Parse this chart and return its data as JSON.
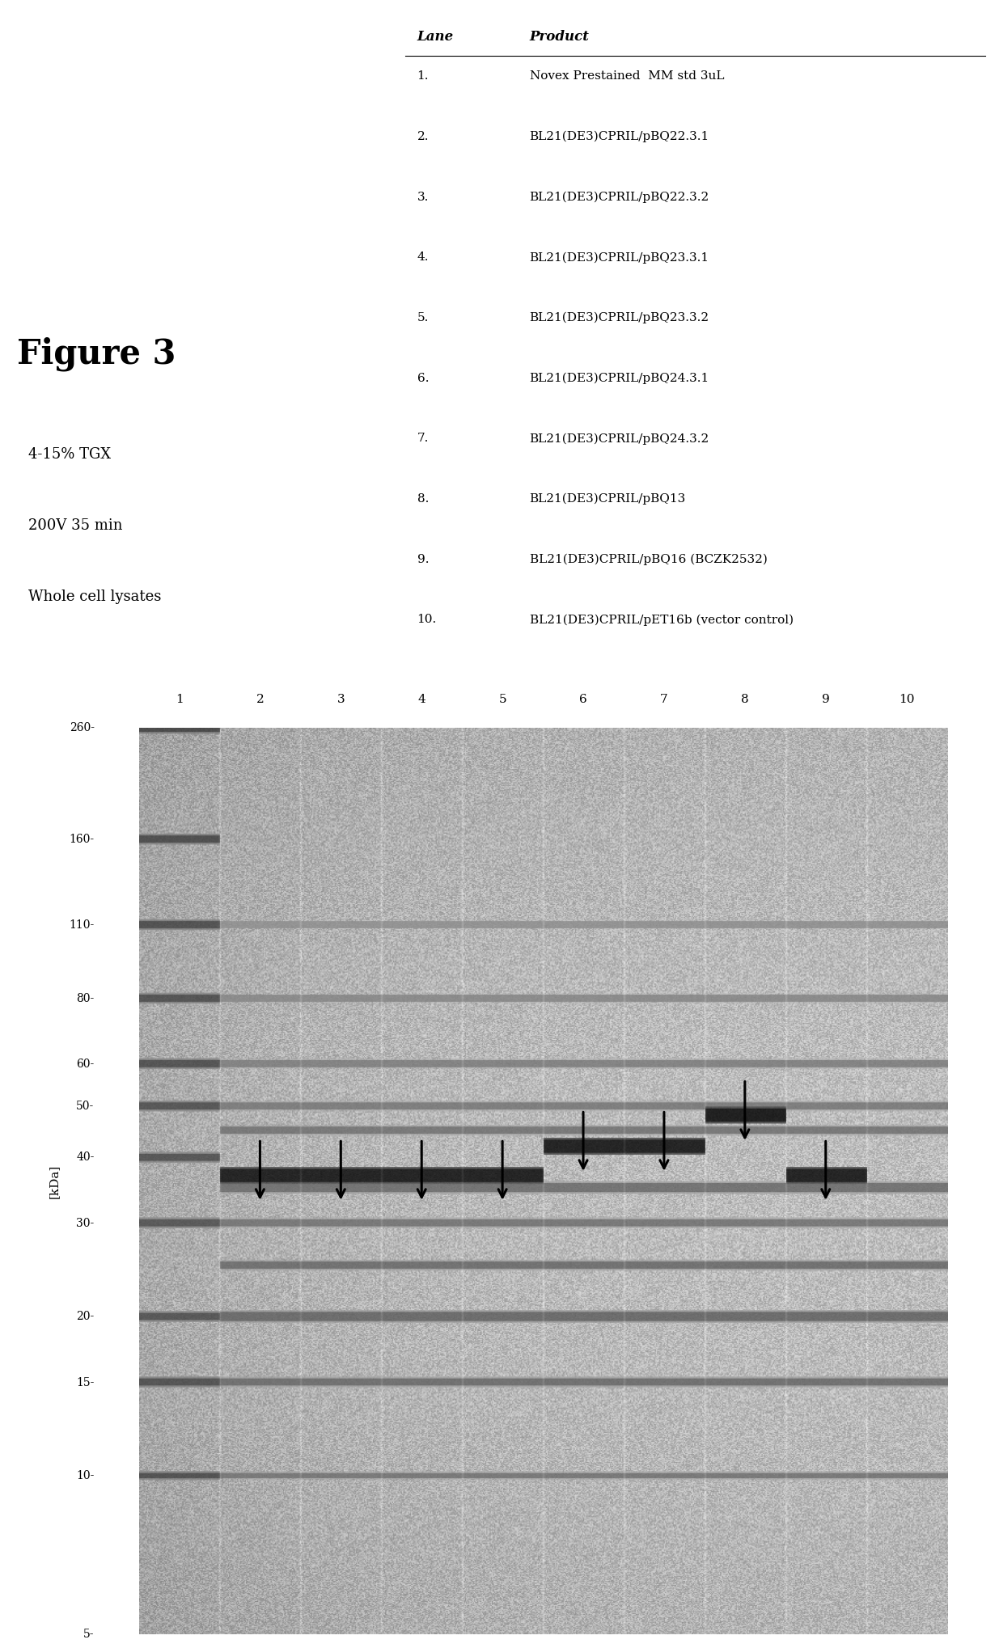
{
  "title": "Figure 3",
  "gel_conditions": [
    "4-15% TGX",
    "200V 35 min",
    "Whole cell lysates"
  ],
  "lane_labels": [
    "1",
    "2",
    "3",
    "4",
    "5",
    "6",
    "7",
    "8",
    "9",
    "10"
  ],
  "kda_values": [
    260,
    160,
    110,
    80,
    60,
    50,
    40,
    30,
    20,
    15,
    10,
    5
  ],
  "table_header": [
    "Lane",
    "Product"
  ],
  "table_rows": [
    [
      "1.",
      "Novex Prestained  MM std 3uL"
    ],
    [
      "2.",
      "BL21(DE3)CPRIL/pBQ22.3.1"
    ],
    [
      "3.",
      "BL21(DE3)CPRIL/pBQ22.3.2"
    ],
    [
      "4.",
      "BL21(DE3)CPRIL/pBQ23.3.1"
    ],
    [
      "5.",
      "BL21(DE3)CPRIL/pBQ23.3.2"
    ],
    [
      "6.",
      "BL21(DE3)CPRIL/pBQ24.3.1"
    ],
    [
      "7.",
      "BL21(DE3)CPRIL/pBQ24.3.2"
    ],
    [
      "8.",
      "BL21(DE3)CPRIL/pBQ13"
    ],
    [
      "9.",
      "BL21(DE3)CPRIL/pBQ16 (BCZK2532)"
    ],
    [
      "10.",
      "BL21(DE3)CPRIL/pET16b (vector control)"
    ]
  ],
  "arrow_positions": [
    {
      "lane": 2,
      "kda": 37
    },
    {
      "lane": 3,
      "kda": 37
    },
    {
      "lane": 4,
      "kda": 37
    },
    {
      "lane": 5,
      "kda": 37
    },
    {
      "lane": 6,
      "kda": 42
    },
    {
      "lane": 7,
      "kda": 42
    },
    {
      "lane": 8,
      "kda": 48
    },
    {
      "lane": 9,
      "kda": 37
    }
  ],
  "background_color": "#ffffff"
}
